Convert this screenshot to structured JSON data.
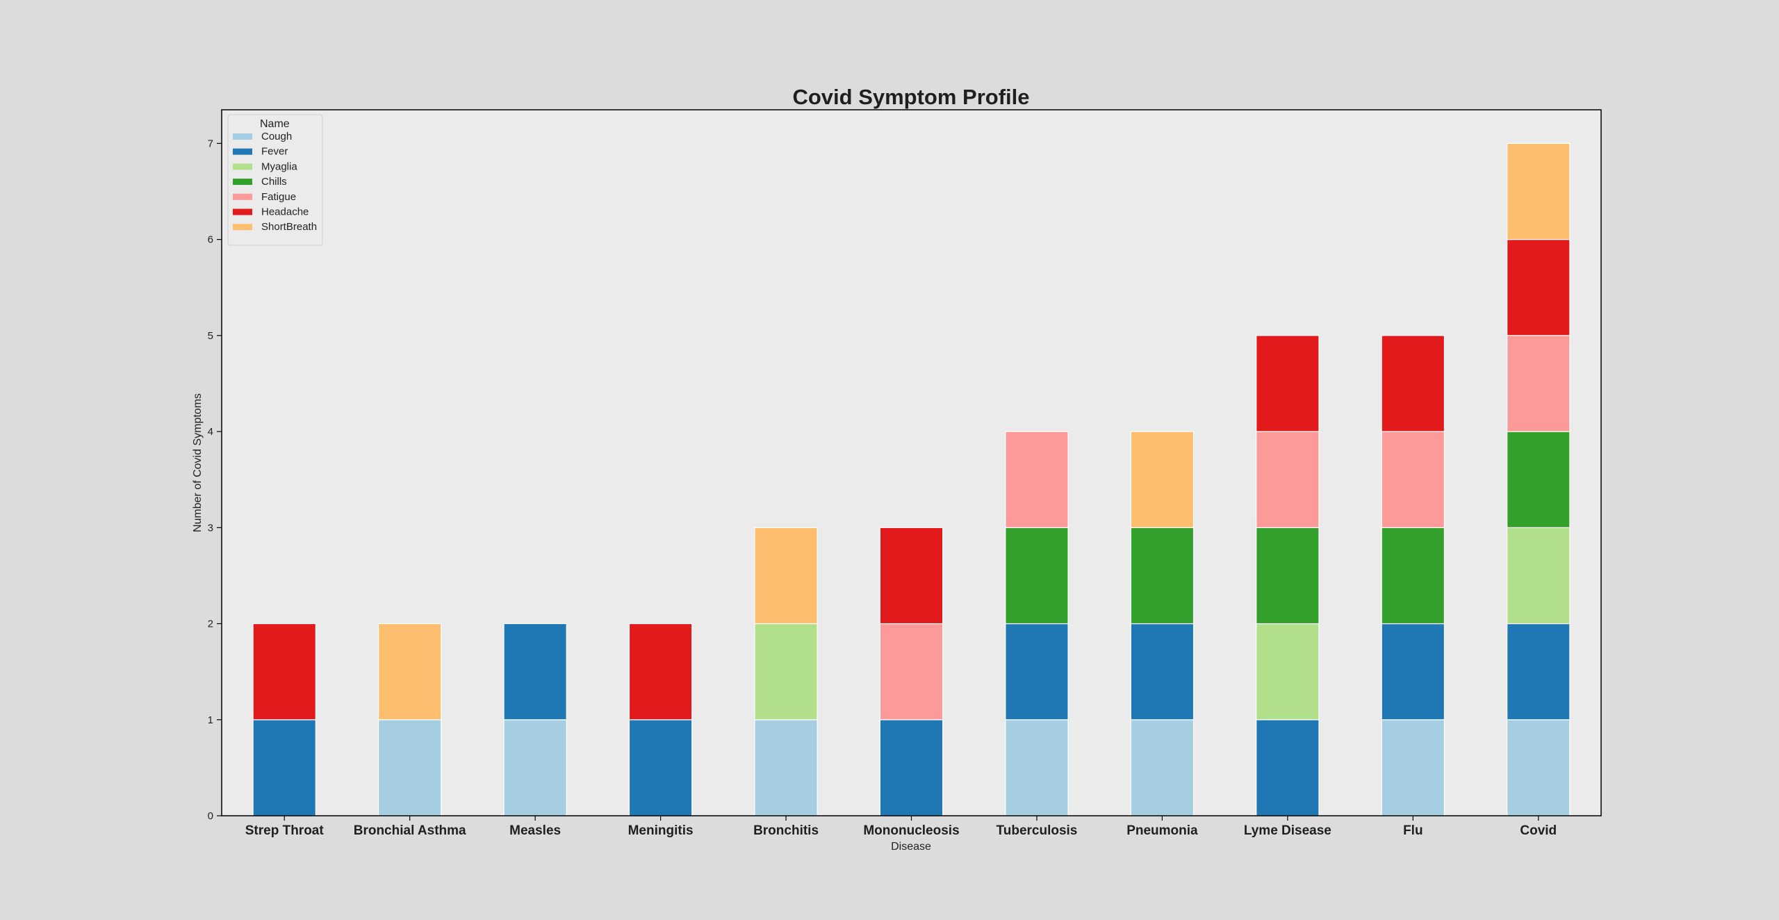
{
  "chart_data": {
    "type": "bar",
    "stacked": true,
    "title": "Covid Symptom Profile",
    "xlabel": "Disease",
    "ylabel": "Number of Covid Symptoms",
    "ylim": [
      0,
      7.35
    ],
    "yticks": [
      0,
      1,
      2,
      3,
      4,
      5,
      6,
      7
    ],
    "grid": false,
    "legend": {
      "title": "Name",
      "placement": "top-left"
    },
    "categories": [
      "Strep Throat",
      "Bronchial Asthma",
      "Measles",
      "Meningitis",
      "Bronchitis",
      "Mononucleosis",
      "Tuberculosis",
      "Pneumonia",
      "Lyme Disease",
      "Flu",
      "Covid"
    ],
    "series": [
      {
        "name": "Cough",
        "color": "#a6cee3",
        "values": [
          0,
          1,
          1,
          0,
          1,
          0,
          1,
          1,
          0,
          1,
          1
        ]
      },
      {
        "name": "Fever",
        "color": "#1f78b4",
        "values": [
          1,
          0,
          1,
          1,
          0,
          1,
          1,
          1,
          1,
          1,
          1
        ]
      },
      {
        "name": "Myaglia",
        "color": "#b2df8a",
        "values": [
          0,
          0,
          0,
          0,
          1,
          0,
          0,
          0,
          1,
          0,
          1
        ]
      },
      {
        "name": "Chills",
        "color": "#33a02c",
        "values": [
          0,
          0,
          0,
          0,
          0,
          0,
          1,
          1,
          1,
          1,
          1
        ]
      },
      {
        "name": "Fatigue",
        "color": "#fb9a99",
        "values": [
          0,
          0,
          0,
          0,
          0,
          1,
          1,
          0,
          1,
          1,
          1
        ]
      },
      {
        "name": "Headache",
        "color": "#e31a1c",
        "values": [
          1,
          0,
          0,
          1,
          0,
          1,
          0,
          0,
          1,
          1,
          1
        ]
      },
      {
        "name": "ShortBreath",
        "color": "#fdbf6f",
        "values": [
          0,
          1,
          0,
          0,
          1,
          0,
          0,
          1,
          0,
          0,
          1
        ]
      }
    ],
    "colors": {
      "page_background": "#dcdcdc",
      "plot_background": "#ebebeb",
      "frame": "#000000"
    }
  }
}
